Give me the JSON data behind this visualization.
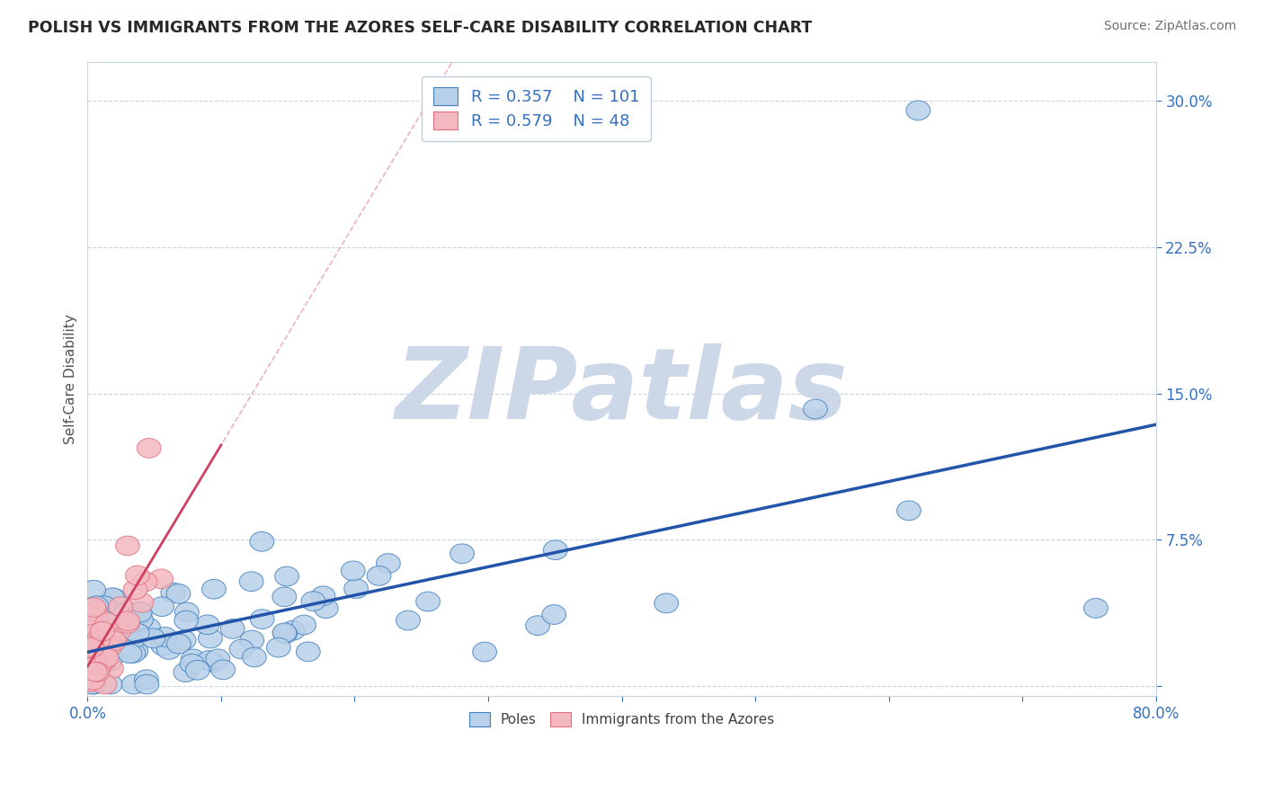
{
  "title": "POLISH VS IMMIGRANTS FROM THE AZORES SELF-CARE DISABILITY CORRELATION CHART",
  "source": "Source: ZipAtlas.com",
  "ylabel": "Self-Care Disability",
  "xlim": [
    0.0,
    0.8
  ],
  "ylim": [
    -0.005,
    0.32
  ],
  "blue_R": 0.357,
  "blue_N": 101,
  "pink_R": 0.579,
  "pink_N": 48,
  "blue_face": "#b8d0e8",
  "blue_edge": "#4080c0",
  "blue_line": "#2255aa",
  "pink_face": "#f4b8c0",
  "pink_edge": "#e07080",
  "pink_line": "#d04060",
  "pink_dash_color": "#e8a0a8",
  "watermark_color": "#ccd8e8",
  "legend_color": "#3570c0",
  "background": "#ffffff",
  "grid_color": "#c8d4e0"
}
